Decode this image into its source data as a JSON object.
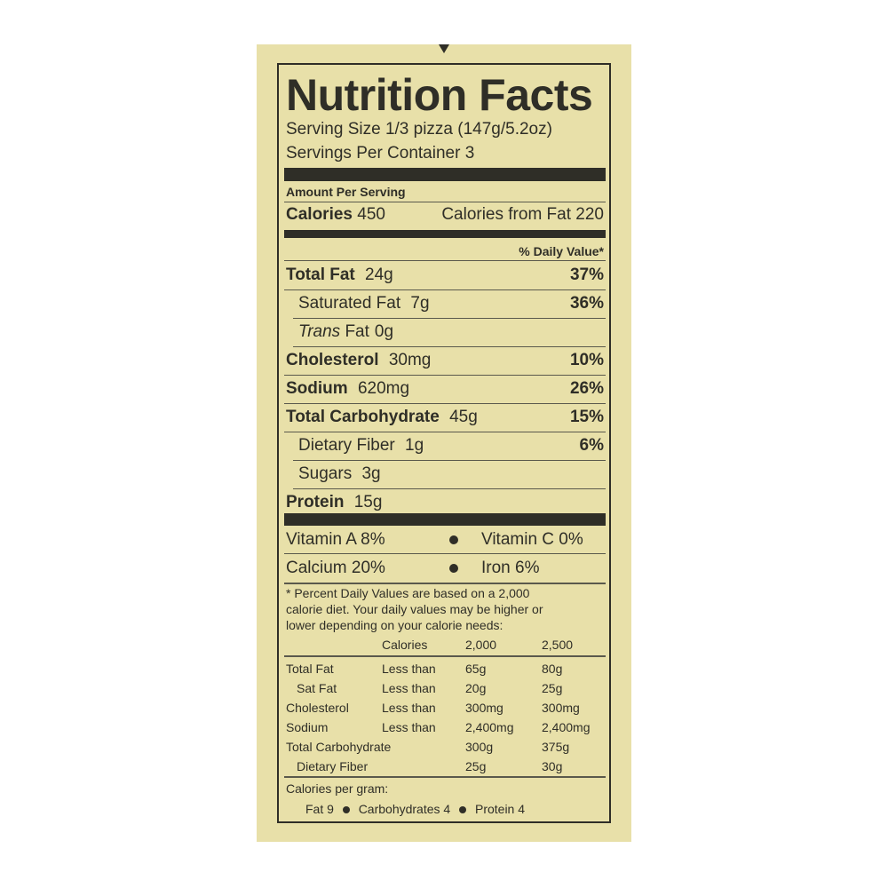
{
  "title": "Nutrition Facts",
  "serving_size": "Serving Size 1/3 pizza (147g/5.2oz)",
  "servings_per_container": "Servings Per Container 3",
  "amount_per_serving": "Amount Per Serving",
  "calories_label": "Calories",
  "calories_value": "450",
  "calories_from_fat": "Calories from Fat  220",
  "daily_value_header": "% Daily Value*",
  "nutrients": [
    {
      "name": "Total Fat",
      "amount": "24g",
      "pct": "37%",
      "bold": true,
      "indent": false
    },
    {
      "name": "Saturated Fat",
      "amount": "7g",
      "pct": "36%",
      "bold": false,
      "indent": true
    },
    {
      "name": "Trans",
      "name_rest": "Fat",
      "amount": "0g",
      "pct": "",
      "bold": false,
      "indent": true
    },
    {
      "name": "Cholesterol",
      "amount": "30mg",
      "pct": "10%",
      "bold": true,
      "indent": false
    },
    {
      "name": "Sodium",
      "amount": "620mg",
      "pct": "26%",
      "bold": true,
      "indent": false
    },
    {
      "name": "Total Carbohydrate",
      "amount": "45g",
      "pct": "15%",
      "bold": true,
      "indent": false
    },
    {
      "name": "Dietary Fiber",
      "amount": "1g",
      "pct": "6%",
      "bold": false,
      "indent": true
    },
    {
      "name": "Sugars",
      "amount": "3g",
      "pct": "",
      "bold": false,
      "indent": true
    },
    {
      "name": "Protein",
      "amount": "15g",
      "pct": "",
      "bold": true,
      "indent": false
    }
  ],
  "vitamins": [
    {
      "left": "Vitamin A  8%",
      "right": "Vitamin C  0%"
    },
    {
      "left": "Calcium  20%",
      "right": "Iron  6%"
    }
  ],
  "footnote": [
    "* Percent Daily Values are based on a 2,000",
    "calorie diet.  Your daily values may be higher or",
    "lower depending on your calorie needs:"
  ],
  "dv_table": {
    "header": [
      "",
      "Calories",
      "2,000",
      "2,500"
    ],
    "rows": [
      [
        "Total Fat",
        "Less than",
        "65g",
        "80g"
      ],
      [
        "  Sat Fat",
        "Less than",
        "20g",
        "25g"
      ],
      [
        "Cholesterol",
        "Less than",
        "300mg",
        "300mg"
      ],
      [
        "Sodium",
        "Less than",
        "2,400mg",
        "2,400mg"
      ],
      [
        "Total Carbohydrate",
        "",
        "300g",
        "375g"
      ],
      [
        "  Dietary Fiber",
        "",
        "25g",
        "30g"
      ]
    ]
  },
  "calories_per_gram": {
    "label": "Calories per gram:",
    "items": [
      "Fat 9",
      "Carbohydrates 4",
      "Protein 4"
    ]
  },
  "colors": {
    "label_bg": "#e8e0a9",
    "ink": "#2f2e27"
  }
}
